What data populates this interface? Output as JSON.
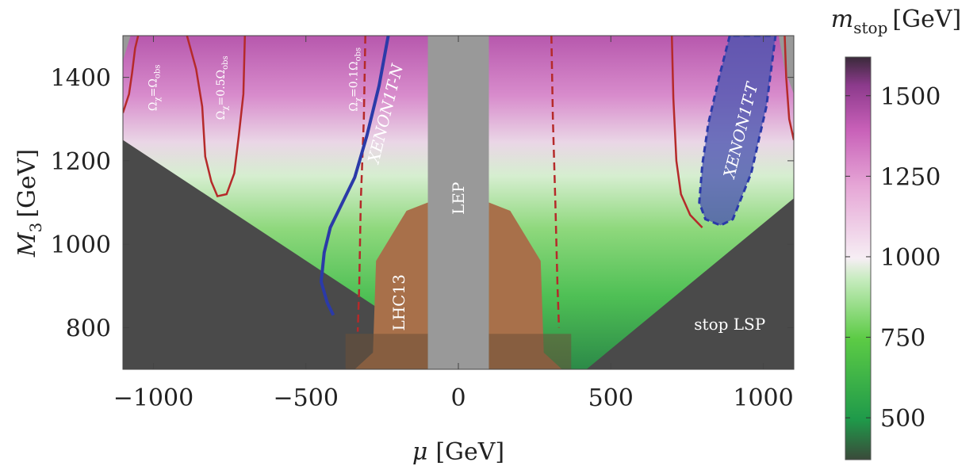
{
  "chart_data": {
    "type": "heatmap",
    "xlabel_symbol": "μ",
    "xlabel_unit": "[GeV]",
    "ylabel_symbol": "M",
    "ylabel_sub": "3",
    "ylabel_unit": "[GeV]",
    "xlim": [
      -1100,
      1100
    ],
    "ylim": [
      700,
      1500
    ],
    "x_ticks": [
      -1000,
      -500,
      0,
      500,
      1000
    ],
    "x_tick_labels": [
      "−1000",
      "−500",
      "0",
      "500",
      "1000"
    ],
    "y_ticks": [
      800,
      1000,
      1200,
      1400
    ],
    "y_tick_labels": [
      "800",
      "1000",
      "1200",
      "1400"
    ],
    "colorbar": {
      "title_symbol": "m",
      "title_sub": "stop",
      "title_unit": "[GeV]",
      "range": [
        370,
        1620
      ],
      "ticks": [
        500,
        750,
        1000,
        1250,
        1500
      ],
      "tick_labels": [
        "500",
        "750",
        "1000",
        "1250",
        "1500"
      ],
      "colors": [
        "#3a4a3a",
        "#1f9a4a",
        "#5ccb45",
        "#c8ecc0",
        "#f6eef4",
        "#e6a6d6",
        "#c860b8",
        "#8c3a8c",
        "#3a2a3a"
      ]
    },
    "regions": [
      {
        "name": "stop LSP",
        "color": "#4a4a4a",
        "polygon_left": [
          [
            -1100,
            1250
          ],
          [
            -250,
            840
          ],
          [
            -250,
            700
          ],
          [
            -1100,
            700
          ]
        ],
        "polygon_right": [
          [
            1100,
            1110
          ],
          [
            420,
            700
          ],
          [
            1100,
            700
          ]
        ]
      },
      {
        "name": "LEP",
        "color": "#999999",
        "x_range": [
          -100,
          100
        ]
      },
      {
        "name": "LHC13",
        "color": "#a8704a",
        "polygon_left": [
          [
            -100,
            1100
          ],
          [
            -170,
            1080
          ],
          [
            -270,
            960
          ],
          [
            -280,
            740
          ],
          [
            -340,
            700
          ],
          [
            -100,
            700
          ]
        ],
        "polygon_right": [
          [
            100,
            1100
          ],
          [
            170,
            1080
          ],
          [
            270,
            960
          ],
          [
            280,
            740
          ],
          [
            340,
            700
          ],
          [
            100,
            700
          ]
        ]
      },
      {
        "name": "XENON1T-N",
        "color": "#2b3aa8"
      },
      {
        "name": "XENON1T-T",
        "color": "#4a55b0"
      }
    ],
    "contours": [
      {
        "label": "Ω_χ=Ω_obs",
        "color": "#b52a2a",
        "style": "solid",
        "points": [
          [
            -1100,
            1315
          ],
          [
            -1080,
            1360
          ],
          [
            -1070,
            1410
          ],
          [
            -1060,
            1470
          ],
          [
            -1050,
            1500
          ]
        ]
      },
      {
        "label": "Ω_χ=0.5Ω_obs",
        "color": "#b52a2a",
        "style": "solid",
        "points": [
          [
            -890,
            1500
          ],
          [
            -860,
            1420
          ],
          [
            -840,
            1330
          ],
          [
            -830,
            1210
          ],
          [
            -810,
            1150
          ],
          [
            -790,
            1115
          ],
          [
            -760,
            1120
          ],
          [
            -735,
            1170
          ],
          [
            -720,
            1260
          ],
          [
            -705,
            1360
          ],
          [
            -700,
            1500
          ]
        ]
      },
      {
        "label": "Ω_χ=0.1Ω_obs",
        "color": "#b52a2a",
        "style": "dashed",
        "points": [
          [
            -305,
            1500
          ],
          [
            -310,
            1300
          ],
          [
            -320,
            1100
          ],
          [
            -325,
            900
          ],
          [
            -330,
            790
          ]
        ]
      },
      {
        "label": "",
        "color": "#b52a2a",
        "style": "dashed",
        "points": [
          [
            305,
            1500
          ],
          [
            310,
            1300
          ],
          [
            318,
            1100
          ],
          [
            325,
            900
          ],
          [
            330,
            800
          ]
        ]
      },
      {
        "label": "",
        "color": "#b52a2a",
        "style": "solid",
        "points": [
          [
            700,
            1500
          ],
          [
            705,
            1350
          ],
          [
            715,
            1200
          ],
          [
            730,
            1120
          ],
          [
            760,
            1070
          ],
          [
            800,
            1040
          ]
        ]
      },
      {
        "label": "",
        "color": "#b52a2a",
        "style": "solid",
        "points": [
          [
            1070,
            1500
          ],
          [
            1075,
            1400
          ],
          [
            1085,
            1300
          ],
          [
            1100,
            1250
          ]
        ]
      },
      {
        "label": "XENON1T-N",
        "color": "#2b3aa8",
        "style": "solid",
        "points": [
          [
            -230,
            1500
          ],
          [
            -260,
            1380
          ],
          [
            -300,
            1260
          ],
          [
            -340,
            1160
          ],
          [
            -380,
            1100
          ],
          [
            -420,
            1040
          ],
          [
            -440,
            980
          ],
          [
            -450,
            910
          ],
          [
            -430,
            860
          ],
          [
            -410,
            830
          ]
        ]
      }
    ],
    "region_labels": [
      "LEP",
      "LHC13",
      "stop LSP",
      "XENON1T-N",
      "XENON1T-T"
    ],
    "contour_labels": [
      "Ω",
      "χ",
      "=Ω",
      "obs",
      "Ω",
      "χ",
      "=0.5Ω",
      "obs",
      "Ω",
      "χ",
      "=0.1Ω",
      "obs"
    ],
    "grid": false
  }
}
